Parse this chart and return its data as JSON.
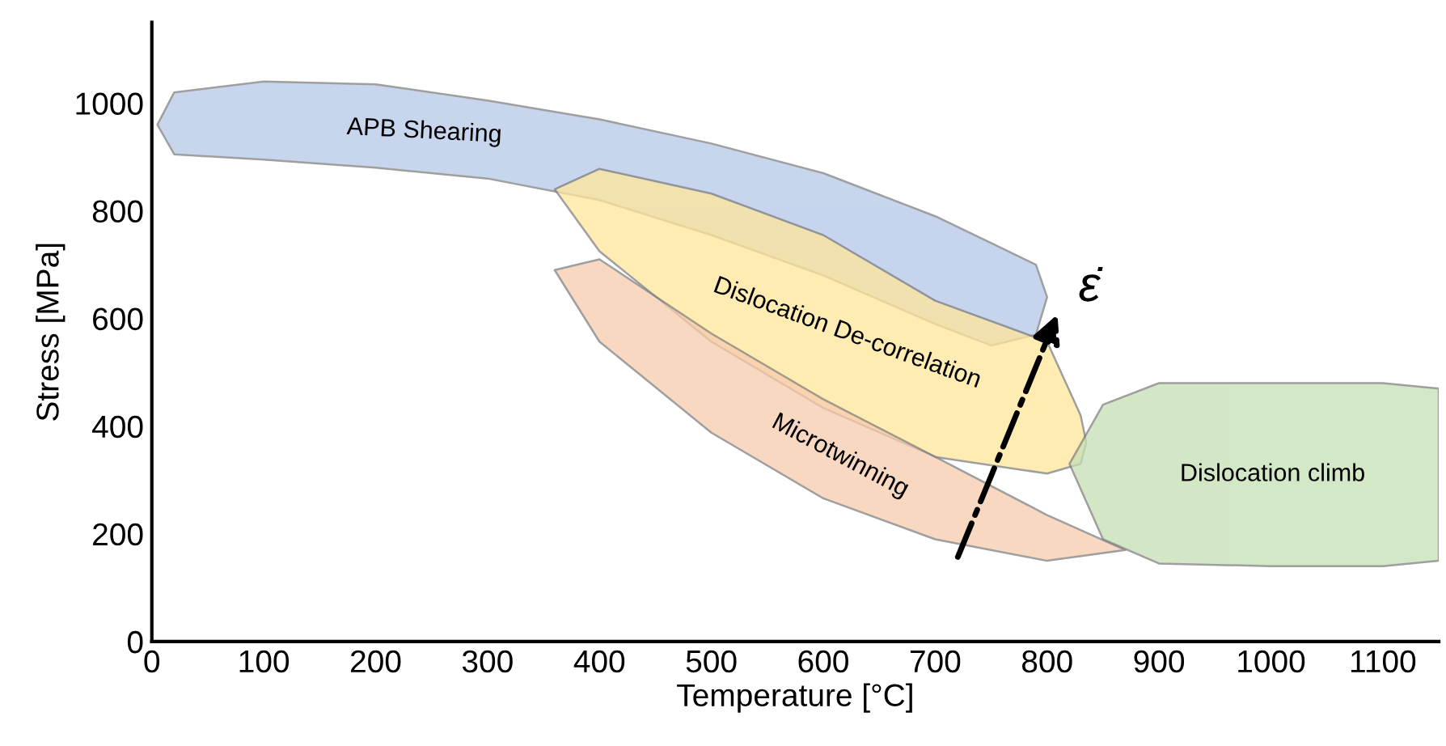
{
  "chart_data": {
    "type": "area",
    "xlabel": "Temperature [°C]",
    "ylabel": "Stress [MPa]",
    "xlim": [
      0,
      1150
    ],
    "xticks": [
      0,
      100,
      200,
      300,
      400,
      500,
      600,
      700,
      800,
      900,
      1000,
      1100
    ],
    "ylim": [
      0,
      1150
    ],
    "yticks": [
      0,
      200,
      400,
      600,
      800,
      1000
    ],
    "grid": false,
    "legend": false,
    "series": [
      {
        "name": "APB Shearing",
        "color": "#b4c7e7",
        "x": [
          5,
          20,
          100,
          200,
          300,
          400,
          500,
          600,
          700,
          750,
          790,
          800,
          790,
          750,
          700,
          600,
          500,
          400,
          300,
          200,
          100,
          20
        ],
        "values": [
          960,
          1020,
          1040,
          1035,
          1005,
          970,
          925,
          870,
          790,
          740,
          700,
          640,
          570,
          550,
          590,
          680,
          755,
          820,
          860,
          880,
          895,
          905
        ]
      },
      {
        "name": "Dislocation De-correlation",
        "color": "#ffe699",
        "x": [
          360,
          400,
          500,
          600,
          700,
          800,
          830,
          835,
          830,
          800,
          700,
          600,
          500,
          400
        ],
        "values": [
          840,
          878,
          832,
          755,
          633,
          557,
          420,
          370,
          330,
          312,
          343,
          434,
          557,
          725
        ]
      },
      {
        "name": "Microtwinning",
        "color": "#f8cbad",
        "x": [
          360,
          400,
          500,
          600,
          700,
          800,
          870,
          800,
          700,
          600,
          500,
          400
        ],
        "values": [
          690,
          710,
          572,
          450,
          343,
          235,
          170,
          150,
          190,
          266,
          388,
          557
        ]
      },
      {
        "name": "Dislocation climb",
        "color": "#c5e0b4",
        "x": [
          820,
          850,
          900,
          1000,
          1100,
          1150,
          1150,
          1100,
          1000,
          900,
          850
        ],
        "values": [
          330,
          440,
          480,
          480,
          480,
          470,
          150,
          140,
          140,
          145,
          190
        ]
      }
    ],
    "annotations": [
      "ε̇"
    ]
  }
}
